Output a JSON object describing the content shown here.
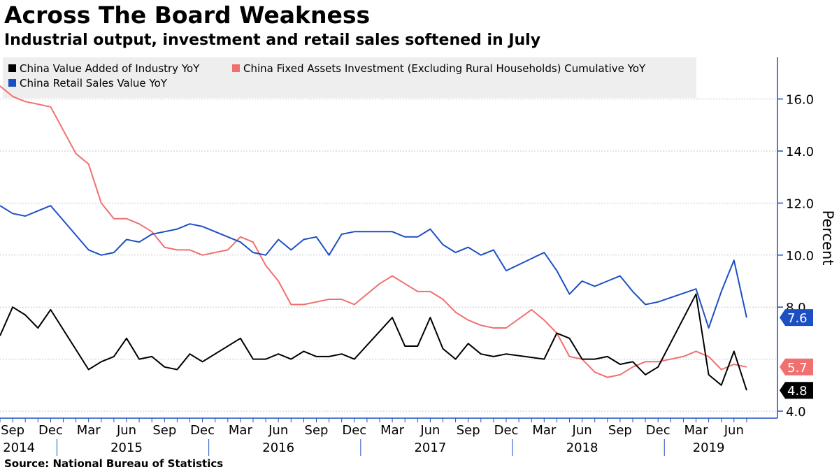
{
  "title": "Across The Board Weakness",
  "subtitle": "Industrial output, investment and retail sales softened in July",
  "source": "Source: National Bureau of Statistics",
  "chart_data": {
    "type": "line",
    "x": [
      "2014-08",
      "2014-09",
      "2014-10",
      "2014-11",
      "2014-12",
      "2015-01",
      "2015-02",
      "2015-03",
      "2015-04",
      "2015-05",
      "2015-06",
      "2015-07",
      "2015-08",
      "2015-09",
      "2015-10",
      "2015-11",
      "2015-12",
      "2016-01",
      "2016-02",
      "2016-03",
      "2016-04",
      "2016-05",
      "2016-06",
      "2016-07",
      "2016-08",
      "2016-09",
      "2016-10",
      "2016-11",
      "2016-12",
      "2017-01",
      "2017-02",
      "2017-03",
      "2017-04",
      "2017-05",
      "2017-06",
      "2017-07",
      "2017-08",
      "2017-09",
      "2017-10",
      "2017-11",
      "2017-12",
      "2018-01",
      "2018-02",
      "2018-03",
      "2018-04",
      "2018-05",
      "2018-06",
      "2018-07",
      "2018-08",
      "2018-09",
      "2018-10",
      "2018-11",
      "2018-12",
      "2019-01",
      "2019-02",
      "2019-03",
      "2019-04",
      "2019-05",
      "2019-06",
      "2019-07"
    ],
    "series": [
      {
        "name": "China Value Added of Industry YoY",
        "color": "#000000",
        "last_label": "4.8",
        "values": [
          6.9,
          8.0,
          7.7,
          7.2,
          7.9,
          null,
          null,
          5.6,
          5.9,
          6.1,
          6.8,
          6.0,
          6.1,
          5.7,
          5.6,
          6.2,
          5.9,
          null,
          null,
          6.8,
          6.0,
          6.0,
          6.2,
          6.0,
          6.3,
          6.1,
          6.1,
          6.2,
          6.0,
          null,
          null,
          7.6,
          6.5,
          6.5,
          7.6,
          6.4,
          6.0,
          6.6,
          6.2,
          6.1,
          6.2,
          null,
          null,
          6.0,
          7.0,
          6.8,
          6.0,
          6.0,
          6.1,
          5.8,
          5.9,
          5.4,
          5.7,
          null,
          null,
          8.5,
          5.4,
          5.0,
          6.3,
          4.8
        ]
      },
      {
        "name": "China Fixed Assets Investment (Excluding Rural Households) Cumulative YoY",
        "color": "#f07070",
        "last_label": "5.7",
        "values": [
          16.5,
          16.1,
          15.9,
          15.8,
          15.7,
          null,
          13.9,
          13.5,
          12.0,
          11.4,
          11.4,
          11.2,
          10.9,
          10.3,
          10.2,
          10.2,
          10.0,
          null,
          10.2,
          10.7,
          10.5,
          9.6,
          9.0,
          8.1,
          8.1,
          8.2,
          8.3,
          8.3,
          8.1,
          null,
          8.9,
          9.2,
          8.9,
          8.6,
          8.6,
          8.3,
          7.8,
          7.5,
          7.3,
          7.2,
          7.2,
          null,
          7.9,
          7.5,
          7.0,
          6.1,
          6.0,
          5.5,
          5.3,
          5.4,
          5.7,
          5.9,
          5.9,
          null,
          6.1,
          6.3,
          6.1,
          5.6,
          5.8,
          5.7
        ]
      },
      {
        "name": "China Retail Sales Value YoY",
        "color": "#1d4fc4",
        "last_label": "7.6",
        "values": [
          11.9,
          11.6,
          11.5,
          11.7,
          11.9,
          null,
          null,
          10.2,
          10.0,
          10.1,
          10.6,
          10.5,
          10.8,
          10.9,
          11.0,
          11.2,
          11.1,
          null,
          null,
          10.5,
          10.1,
          10.0,
          10.6,
          10.2,
          10.6,
          10.7,
          10.0,
          10.8,
          10.9,
          null,
          null,
          10.9,
          10.7,
          10.7,
          11.0,
          10.4,
          10.1,
          10.3,
          10.0,
          10.2,
          9.4,
          null,
          null,
          10.1,
          9.4,
          8.5,
          9.0,
          8.8,
          9.0,
          9.2,
          8.6,
          8.1,
          8.2,
          null,
          null,
          8.7,
          7.2,
          8.6,
          9.8,
          7.6
        ]
      }
    ],
    "xlabels_months": [
      {
        "label": "Sep",
        "i": 1
      },
      {
        "label": "Dec",
        "i": 4
      },
      {
        "label": "Mar",
        "i": 7
      },
      {
        "label": "Jun",
        "i": 10
      },
      {
        "label": "Sep",
        "i": 13
      },
      {
        "label": "Dec",
        "i": 16
      },
      {
        "label": "Mar",
        "i": 19
      },
      {
        "label": "Jun",
        "i": 22
      },
      {
        "label": "Sep",
        "i": 25
      },
      {
        "label": "Dec",
        "i": 28
      },
      {
        "label": "Mar",
        "i": 31
      },
      {
        "label": "Jun",
        "i": 34
      },
      {
        "label": "Sep",
        "i": 37
      },
      {
        "label": "Dec",
        "i": 40
      },
      {
        "label": "Mar",
        "i": 43
      },
      {
        "label": "Jun",
        "i": 46
      },
      {
        "label": "Sep",
        "i": 49
      },
      {
        "label": "Dec",
        "i": 52
      },
      {
        "label": "Mar",
        "i": 55
      },
      {
        "label": "Jun",
        "i": 58
      }
    ],
    "xlabels_years": [
      {
        "label": "2014",
        "i": 1.5
      },
      {
        "label": "2015",
        "i": 10
      },
      {
        "label": "2016",
        "i": 22
      },
      {
        "label": "2017",
        "i": 34
      },
      {
        "label": "2018",
        "i": 46
      },
      {
        "label": "2019",
        "i": 56
      }
    ],
    "year_separators": [
      4.5,
      16.5,
      28.5,
      40.5,
      52.5
    ],
    "yticks": [
      4.0,
      8.0,
      10.0,
      12.0,
      14.0,
      16.0
    ],
    "ytick_labels": [
      "4.0",
      "8.0",
      "10.0",
      "12.0",
      "14.0",
      "16.0"
    ],
    "gridlines": [
      4,
      6,
      8,
      10,
      12,
      14,
      16
    ],
    "ylim": [
      3.6,
      17.6
    ],
    "ylabel": "Percent",
    "legend_position": "top-left"
  }
}
